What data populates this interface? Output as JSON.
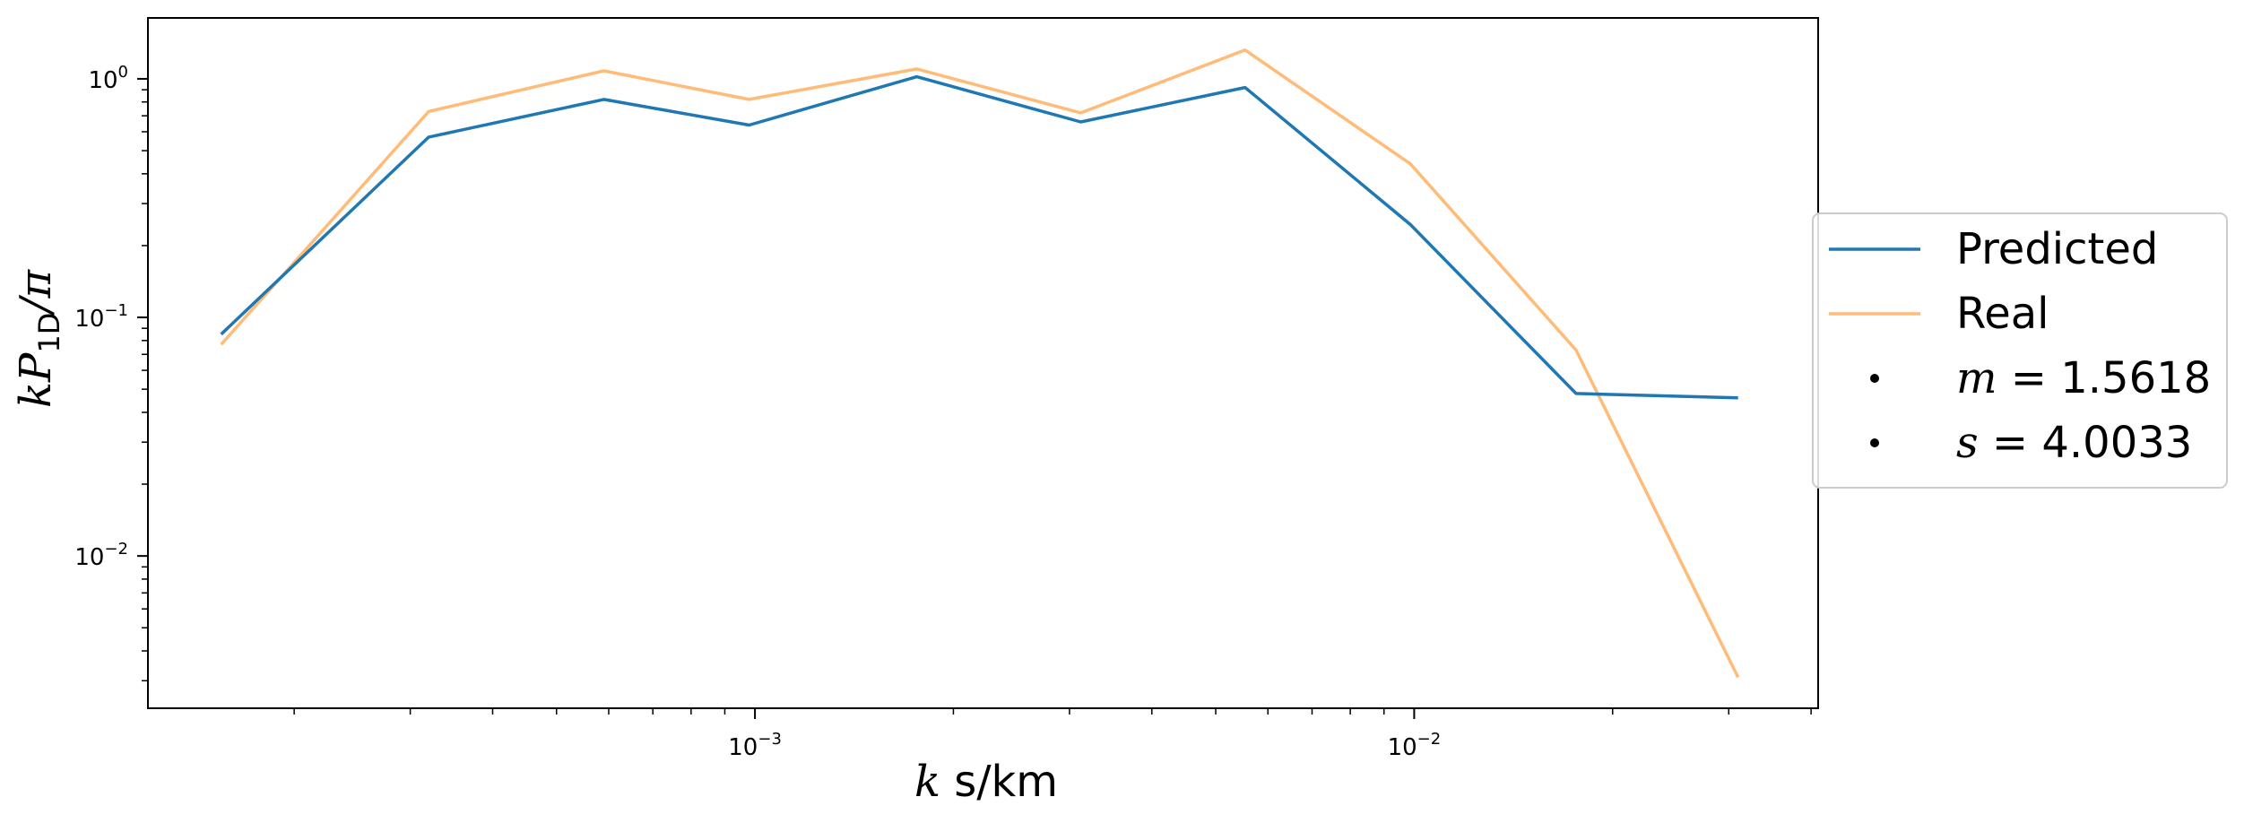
{
  "chart_data": {
    "type": "line",
    "xlabel_var": "k",
    "xlabel_unit": " s/km",
    "ylabel_k": "k",
    "ylabel_P": "P",
    "ylabel_sub": "1D",
    "ylabel_tail": "/π",
    "xscale": "log",
    "yscale": "log",
    "xlim": [
      0.00012,
      0.041
    ],
    "ylim": [
      0.0023,
      1.8
    ],
    "x_ticks": [
      {
        "value": 0.001,
        "base": "10",
        "exp": "−3"
      },
      {
        "value": 0.01,
        "base": "10",
        "exp": "−2"
      }
    ],
    "y_ticks": [
      {
        "value": 0.01,
        "base": "10",
        "exp": "−2"
      },
      {
        "value": 0.1,
        "base": "10",
        "exp": "−1"
      },
      {
        "value": 1,
        "base": "10",
        "exp": "0"
      }
    ],
    "grid": false,
    "legend_position": "center-right (outside)",
    "series": [
      {
        "name": "Predicted",
        "color": "#1f77b4",
        "x": [
          0.000155,
          0.00032,
          0.00059,
          0.00098,
          0.00176,
          0.00312,
          0.00554,
          0.00987,
          0.0176,
          0.031
        ],
        "y": [
          0.085,
          0.57,
          0.82,
          0.64,
          1.02,
          0.66,
          0.92,
          0.245,
          0.048,
          0.046
        ]
      },
      {
        "name": "Real",
        "color": "#ffbb78",
        "x": [
          0.000155,
          0.00032,
          0.00059,
          0.00098,
          0.00176,
          0.00312,
          0.00554,
          0.00987,
          0.0176,
          0.031
        ],
        "y": [
          0.077,
          0.73,
          1.08,
          0.82,
          1.1,
          0.72,
          1.32,
          0.44,
          0.073,
          0.0031
        ]
      }
    ],
    "annotations": [
      {
        "var": "m",
        "eq": " = ",
        "value": "1.5618"
      },
      {
        "var": "s",
        "eq": " = ",
        "value": "4.0033"
      }
    ]
  }
}
